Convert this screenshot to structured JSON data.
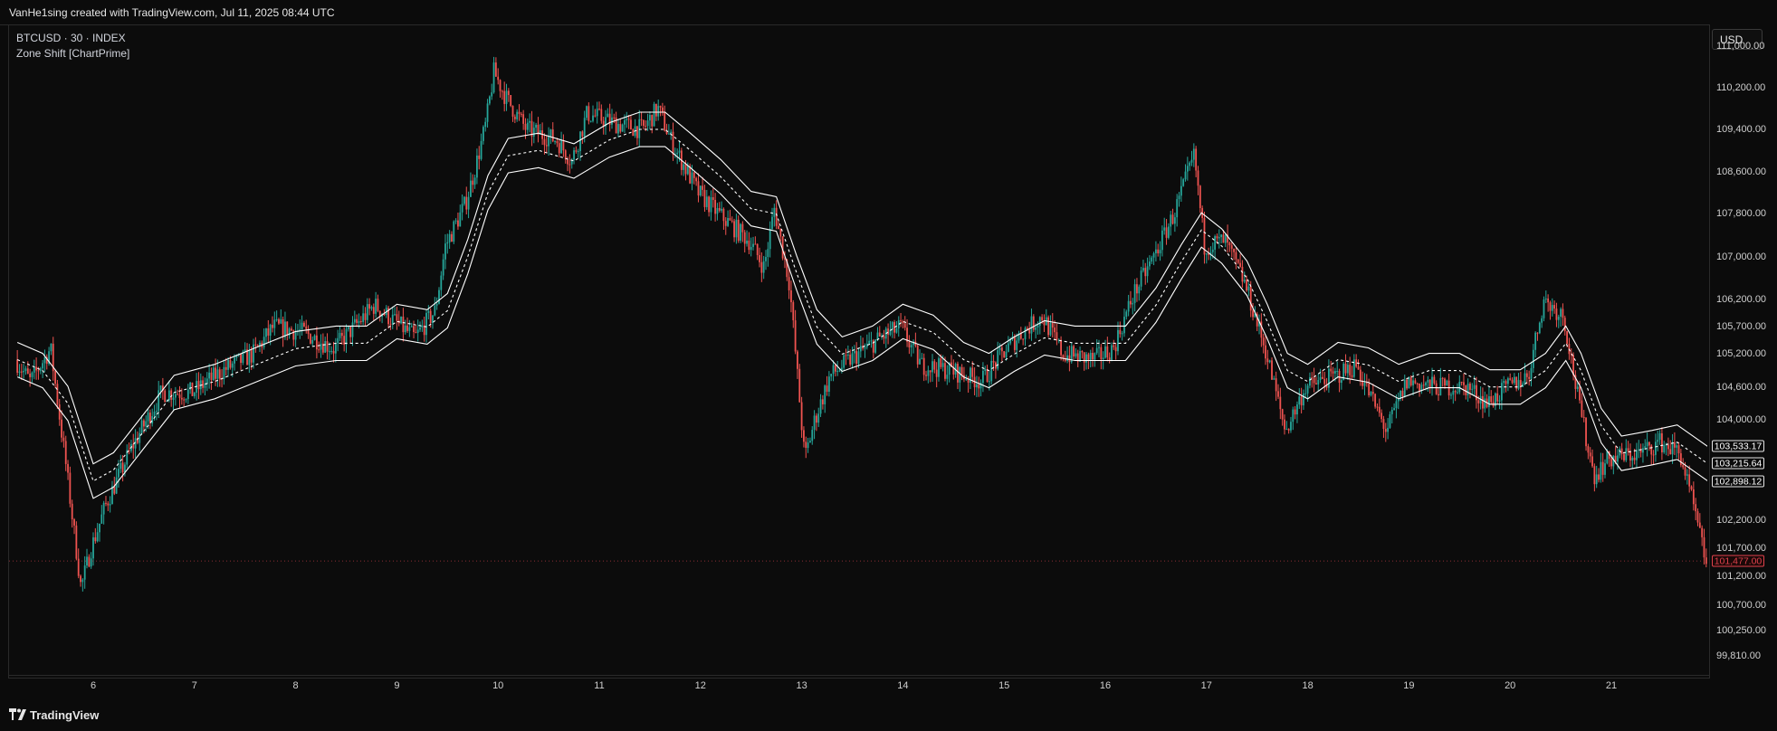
{
  "header": {
    "snapshot_text": "VanHe1sing created with TradingView.com, Jul 11, 2025 08:44 UTC"
  },
  "legend": {
    "symbol_line": "BTCUSD · 30 · INDEX",
    "indicator_line": "Zone Shift [ChartPrime]"
  },
  "yaxis": {
    "currency_button": "USD",
    "ticks": [
      "111,000.00",
      "110,200.00",
      "109,400.00",
      "108,600.00",
      "107,800.00",
      "107,000.00",
      "106,200.00",
      "105,700.00",
      "105,200.00",
      "104,600.00",
      "104,000.00",
      "102,200.00",
      "101,700.00",
      "101,200.00",
      "100,700.00",
      "100,250.00",
      "99,810.00"
    ],
    "band_labels": {
      "upper": "103,533.17",
      "middle": "103,215.64",
      "lower": "102,898.12"
    },
    "last_price_label": "101,477.00"
  },
  "xaxis": {
    "ticks": [
      "6",
      "7",
      "8",
      "9",
      "10",
      "11",
      "12",
      "13",
      "14",
      "15",
      "16",
      "17",
      "18",
      "19",
      "20",
      "21"
    ]
  },
  "footer": {
    "brand": "TradingView"
  },
  "colors": {
    "up": "#26a69a",
    "down": "#ef5350",
    "band": "#ffffff",
    "background": "#0c0c0c",
    "last_price": "#e0424c"
  },
  "chart_data": {
    "type": "line",
    "subtype": "candlestick-with-bands",
    "symbol": "BTCUSD",
    "timeframe": "30",
    "x_labels": [
      "6",
      "7",
      "8",
      "9",
      "10",
      "11",
      "12",
      "13",
      "14",
      "15",
      "16",
      "17",
      "18",
      "19",
      "20",
      "21"
    ],
    "ylim": [
      99500,
      111400
    ],
    "y_scale": "log",
    "price_path": [
      [
        5.25,
        105100
      ],
      [
        5.4,
        104700
      ],
      [
        5.6,
        105300
      ],
      [
        5.75,
        103200
      ],
      [
        5.9,
        101000
      ],
      [
        6.0,
        101700
      ],
      [
        6.15,
        102500
      ],
      [
        6.4,
        103500
      ],
      [
        6.7,
        104500
      ],
      [
        7.0,
        104500
      ],
      [
        7.3,
        104900
      ],
      [
        7.6,
        105200
      ],
      [
        7.8,
        105700
      ],
      [
        8.1,
        105600
      ],
      [
        8.4,
        105300
      ],
      [
        8.6,
        105700
      ],
      [
        8.8,
        106100
      ],
      [
        9.0,
        105800
      ],
      [
        9.2,
        105500
      ],
      [
        9.4,
        106000
      ],
      [
        9.5,
        107200
      ],
      [
        9.7,
        108000
      ],
      [
        9.8,
        108700
      ],
      [
        9.9,
        109500
      ],
      [
        9.98,
        110500
      ],
      [
        10.1,
        110000
      ],
      [
        10.3,
        109400
      ],
      [
        10.6,
        109200
      ],
      [
        10.75,
        108800
      ],
      [
        10.9,
        109700
      ],
      [
        11.2,
        109500
      ],
      [
        11.45,
        109400
      ],
      [
        11.6,
        109800
      ],
      [
        11.75,
        109100
      ],
      [
        12.0,
        108200
      ],
      [
        12.2,
        107800
      ],
      [
        12.5,
        107300
      ],
      [
        12.65,
        106800
      ],
      [
        12.75,
        107900
      ],
      [
        12.9,
        106500
      ],
      [
        13.05,
        103300
      ],
      [
        13.15,
        104000
      ],
      [
        13.3,
        104800
      ],
      [
        13.5,
        105100
      ],
      [
        13.8,
        105500
      ],
      [
        14.0,
        105700
      ],
      [
        14.2,
        105000
      ],
      [
        14.5,
        104900
      ],
      [
        14.8,
        104700
      ],
      [
        15.0,
        105200
      ],
      [
        15.2,
        105600
      ],
      [
        15.4,
        105900
      ],
      [
        15.6,
        105200
      ],
      [
        15.9,
        105100
      ],
      [
        16.1,
        105300
      ],
      [
        16.3,
        106300
      ],
      [
        16.5,
        107000
      ],
      [
        16.7,
        107800
      ],
      [
        16.9,
        108900
      ],
      [
        17.0,
        107200
      ],
      [
        17.2,
        107300
      ],
      [
        17.4,
        106500
      ],
      [
        17.6,
        105300
      ],
      [
        17.8,
        103800
      ],
      [
        18.0,
        104600
      ],
      [
        18.3,
        104800
      ],
      [
        18.5,
        105000
      ],
      [
        18.8,
        103800
      ],
      [
        19.0,
        104700
      ],
      [
        19.3,
        104600
      ],
      [
        19.6,
        104600
      ],
      [
        19.8,
        104300
      ],
      [
        20.0,
        104600
      ],
      [
        20.2,
        104800
      ],
      [
        20.35,
        106200
      ],
      [
        20.55,
        105900
      ],
      [
        20.7,
        104300
      ],
      [
        20.85,
        103000
      ],
      [
        21.0,
        103300
      ],
      [
        21.3,
        103400
      ],
      [
        21.5,
        103600
      ],
      [
        21.7,
        103400
      ],
      [
        21.85,
        102300
      ],
      [
        21.95,
        101477
      ]
    ],
    "band_mid_path": [
      [
        5.25,
        105100
      ],
      [
        5.5,
        104900
      ],
      [
        5.75,
        104300
      ],
      [
        6.0,
        102900
      ],
      [
        6.2,
        103100
      ],
      [
        6.5,
        103800
      ],
      [
        6.8,
        104500
      ],
      [
        7.2,
        104700
      ],
      [
        7.6,
        105000
      ],
      [
        8.0,
        105300
      ],
      [
        8.4,
        105400
      ],
      [
        8.7,
        105400
      ],
      [
        9.0,
        105800
      ],
      [
        9.3,
        105700
      ],
      [
        9.5,
        106000
      ],
      [
        9.7,
        107000
      ],
      [
        9.9,
        108200
      ],
      [
        10.1,
        108900
      ],
      [
        10.4,
        109000
      ],
      [
        10.75,
        108800
      ],
      [
        11.1,
        109200
      ],
      [
        11.4,
        109400
      ],
      [
        11.65,
        109400
      ],
      [
        11.9,
        109000
      ],
      [
        12.2,
        108500
      ],
      [
        12.5,
        107900
      ],
      [
        12.75,
        107800
      ],
      [
        12.95,
        106700
      ],
      [
        13.15,
        105700
      ],
      [
        13.4,
        105200
      ],
      [
        13.7,
        105400
      ],
      [
        14.0,
        105800
      ],
      [
        14.3,
        105600
      ],
      [
        14.6,
        105100
      ],
      [
        14.85,
        104900
      ],
      [
        15.1,
        105200
      ],
      [
        15.4,
        105500
      ],
      [
        15.7,
        105400
      ],
      [
        16.0,
        105400
      ],
      [
        16.2,
        105400
      ],
      [
        16.5,
        106100
      ],
      [
        16.75,
        106900
      ],
      [
        16.95,
        107500
      ],
      [
        17.15,
        107200
      ],
      [
        17.4,
        106600
      ],
      [
        17.6,
        105800
      ],
      [
        17.8,
        104900
      ],
      [
        18.0,
        104700
      ],
      [
        18.3,
        105100
      ],
      [
        18.6,
        105000
      ],
      [
        18.9,
        104700
      ],
      [
        19.2,
        104900
      ],
      [
        19.5,
        104900
      ],
      [
        19.8,
        104600
      ],
      [
        20.1,
        104600
      ],
      [
        20.35,
        104900
      ],
      [
        20.55,
        105400
      ],
      [
        20.7,
        104900
      ],
      [
        20.9,
        103900
      ],
      [
        21.1,
        103400
      ],
      [
        21.4,
        103500
      ],
      [
        21.65,
        103600
      ],
      [
        21.95,
        103215.64
      ]
    ],
    "band_width": 0.003,
    "band_labels_values": {
      "upper": 103533.17,
      "middle": 103215.64,
      "lower": 102898.12
    },
    "last_price": 101477.0
  }
}
